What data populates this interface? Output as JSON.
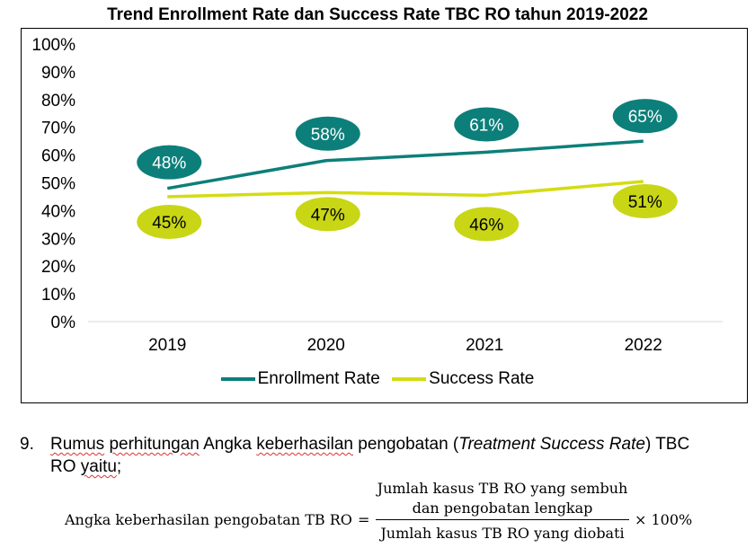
{
  "chart_data": {
    "type": "line",
    "title": "Trend Enrollment Rate dan Success Rate TBC RO tahun 2019-2022",
    "categories": [
      "2019",
      "2020",
      "2021",
      "2022"
    ],
    "y_tick_labels": [
      "100%",
      "90%",
      "80%",
      "70%",
      "60%",
      "50%",
      "40%",
      "30%",
      "20%",
      "10%",
      "0%"
    ],
    "ylim": [
      0,
      100
    ],
    "grid": false,
    "legend_position": "bottom",
    "series": [
      {
        "name": "Enrollment Rate",
        "values": [
          48,
          58,
          61,
          65
        ],
        "labels": [
          "48%",
          "58%",
          "61%",
          "65%"
        ],
        "color": "#0d7f7a",
        "label_color": "#0d7f7a",
        "label_text_color": "#ffffff"
      },
      {
        "name": "Success Rate",
        "values": [
          45,
          46.5,
          45.5,
          50.5
        ],
        "labels": [
          "45%",
          "47%",
          "46%",
          "51%"
        ],
        "color": "#d4dc12",
        "label_color": "#c8d616",
        "label_text_color": "#000000"
      }
    ]
  },
  "section": {
    "number": "9.",
    "text_before_a": "Rumus",
    "text_before_b": " ",
    "text_before_c": "perhitungan",
    "text_before_d": " Angka ",
    "text_before_e": "keberhasilan",
    "text_before_f": " pengobatan (",
    "text_italic": "Treatment Success Rate",
    "text_after": ") TBC",
    "line2_a": "RO ",
    "line2_b": "yaitu",
    "line2_c": ";"
  },
  "formula": {
    "lhs": "Angka keberhasilan pengobatan TB RO",
    "equals": "=",
    "numerator_line1": "Jumlah kasus TB RO yang sembuh",
    "numerator_line2": "dan pengobatan lengkap",
    "denominator": "Jumlah kasus TB RO yang diobati",
    "multiplier": "× 100%"
  }
}
